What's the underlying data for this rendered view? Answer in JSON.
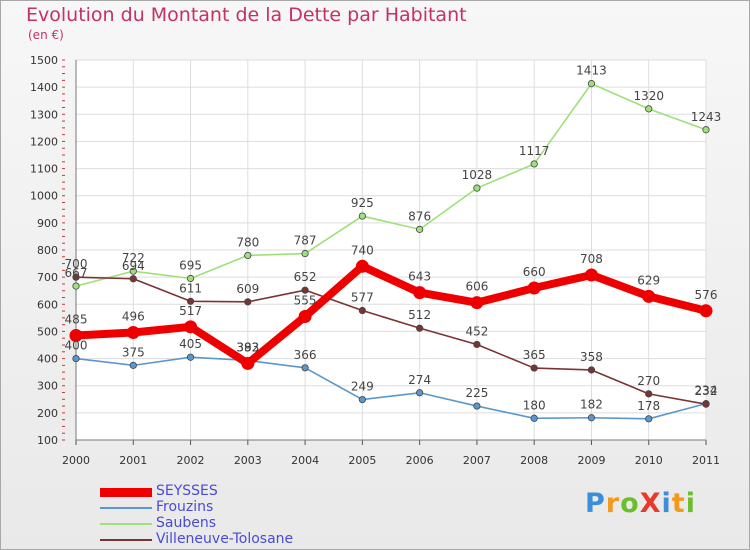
{
  "chart_data": {
    "type": "line",
    "title": "Evolution du Montant de la Dette par Habitant",
    "unit": "(en €)",
    "xlabel": "",
    "ylabel": "",
    "ylim": [
      100,
      1500
    ],
    "yticks": [
      100,
      200,
      300,
      400,
      500,
      600,
      700,
      800,
      900,
      1000,
      1100,
      1200,
      1300,
      1400,
      1500
    ],
    "categories": [
      "2000",
      "2001",
      "2002",
      "2003",
      "2004",
      "2005",
      "2006",
      "2007",
      "2008",
      "2009",
      "2010",
      "2011"
    ],
    "grid": true,
    "legend_position": "bottom-left",
    "series": [
      {
        "name": "Frouzins",
        "color": "#5b97cc",
        "emphasis": false,
        "values": [
          400,
          375,
          405,
          393,
          366,
          249,
          274,
          225,
          180,
          182,
          178,
          234
        ]
      },
      {
        "name": "Saubens",
        "color": "#9ee07a",
        "emphasis": false,
        "values": [
          667,
          722,
          695,
          780,
          787,
          925,
          876,
          1028,
          1117,
          1413,
          1320,
          1243
        ]
      },
      {
        "name": "Villeneuve-Tolosane",
        "color": "#7a3434",
        "emphasis": false,
        "values": [
          700,
          694,
          611,
          609,
          652,
          577,
          512,
          452,
          365,
          358,
          270,
          232
        ]
      },
      {
        "name": "SEYSSES",
        "color": "#ee0000",
        "emphasis": true,
        "values": [
          485,
          496,
          517,
          382,
          555,
          740,
          643,
          606,
          660,
          708,
          629,
          576
        ]
      }
    ],
    "legend_order": [
      "SEYSSES",
      "Frouzins",
      "Saubens",
      "Villeneuve-Tolosane"
    ]
  },
  "logo": {
    "text": "ProXiti",
    "colors": [
      "#3a8fd8",
      "#f29a1c",
      "#6cbf2c",
      "#e83a2a",
      "#3a8fd8",
      "#f29a1c",
      "#6cbf2c"
    ]
  }
}
